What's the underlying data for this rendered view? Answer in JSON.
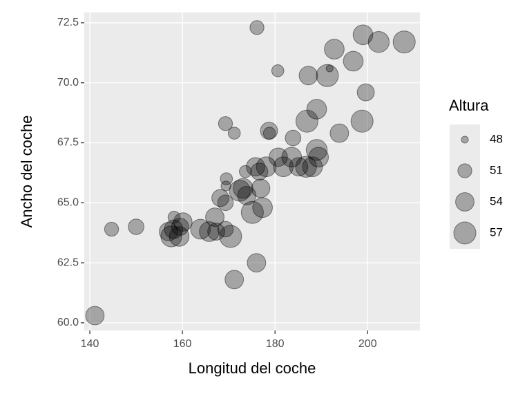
{
  "chart_data": {
    "type": "scatter",
    "x_label": "Longitud del coche",
    "y_label": "Ancho del coche",
    "x": [
      141.1,
      144.7,
      150.0,
      157.6,
      157.0,
      158.2,
      159.3,
      160.1,
      158.1,
      159.5,
      163.9,
      165.8,
      167.0,
      167.3,
      169.3,
      170.4,
      169.5,
      169.4,
      169.3,
      171.2,
      171.2,
      176.0,
      176.1,
      168.2,
      169.3,
      172.4,
      173.1,
      173.9,
      175.1,
      176.9,
      177.3,
      173.6,
      175.8,
      176.6,
      178.1,
      178.7,
      178.8,
      180.6,
      180.7,
      181.8,
      183.6,
      183.9,
      185.1,
      186.7,
      187.2,
      186.9,
      188.1,
      189.0,
      189.0,
      189.4,
      191.3,
      191.8,
      192.8,
      193.9,
      196.9,
      199.0,
      199.6,
      198.8,
      202.4,
      207.9
    ],
    "values": [
      60.3,
      63.9,
      64.0,
      63.6,
      63.8,
      64.4,
      63.6,
      64.2,
      63.9,
      64.0,
      63.9,
      63.8,
      64.4,
      63.8,
      63.9,
      63.6,
      66.0,
      65.7,
      68.3,
      67.9,
      61.8,
      62.5,
      72.3,
      65.2,
      65.0,
      65.5,
      65.6,
      65.3,
      64.6,
      65.6,
      64.8,
      66.3,
      66.5,
      66.3,
      66.5,
      68.0,
      67.9,
      70.5,
      66.9,
      66.5,
      66.9,
      67.7,
      66.5,
      66.5,
      70.3,
      68.4,
      66.5,
      68.9,
      67.2,
      66.9,
      70.3,
      70.6,
      71.4,
      67.9,
      70.9,
      72.0,
      69.6,
      68.4,
      71.7,
      71.7
    ],
    "sizes": [
      54,
      51,
      52,
      56,
      54,
      50,
      55,
      54,
      54,
      53,
      55,
      55,
      54,
      53,
      52,
      57,
      50,
      49,
      51,
      50,
      54,
      54,
      51,
      53,
      52,
      56,
      55,
      54,
      57,
      54,
      55,
      50,
      54,
      53,
      55,
      53,
      50,
      50,
      54,
      55,
      55,
      52,
      54,
      56,
      54,
      57,
      55,
      55,
      56,
      55,
      57,
      48,
      55,
      54,
      55,
      55,
      53,
      57,
      56,
      57
    ],
    "color": "#000000",
    "alpha": 0.3,
    "xlim": [
      138.8,
      211.3
    ],
    "ylim": [
      59.68,
      72.93
    ],
    "xticks": [
      140,
      160,
      180,
      200
    ],
    "yticks": [
      {
        "value": 60,
        "label": "60.0"
      },
      {
        "value": 62.5,
        "label": "62.5"
      },
      {
        "value": 65,
        "label": "65.0"
      },
      {
        "value": 67.5,
        "label": "67.5"
      },
      {
        "value": 70,
        "label": "70.0"
      },
      {
        "value": 72.5,
        "label": "72.5"
      }
    ],
    "grid": true,
    "size_legend": {
      "title": "Altura",
      "values": [
        48,
        51,
        54,
        57
      ]
    }
  }
}
